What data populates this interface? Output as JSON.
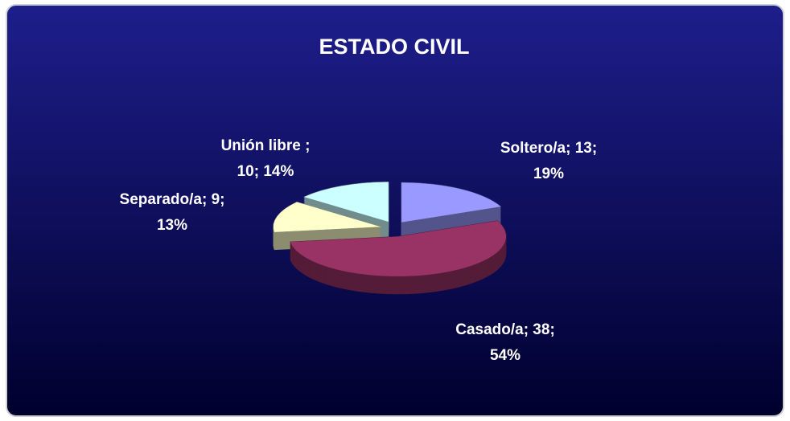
{
  "chart_data": {
    "type": "pie",
    "title": "ESTADO CIVIL",
    "values": [
      13,
      38,
      9,
      10
    ],
    "value_labels": [
      [
        "Soltero/a; 13;",
        "19%"
      ],
      [
        "Casado/a; 38;",
        "54%"
      ],
      [
        "Separado/a; 9;",
        "13%"
      ],
      [
        "Unión libre ;",
        "10; 14%"
      ]
    ],
    "colors": [
      "#9999ff",
      "#993366",
      "#ffffcc",
      "#ccffff"
    ],
    "exploded": true,
    "three_d": true
  }
}
